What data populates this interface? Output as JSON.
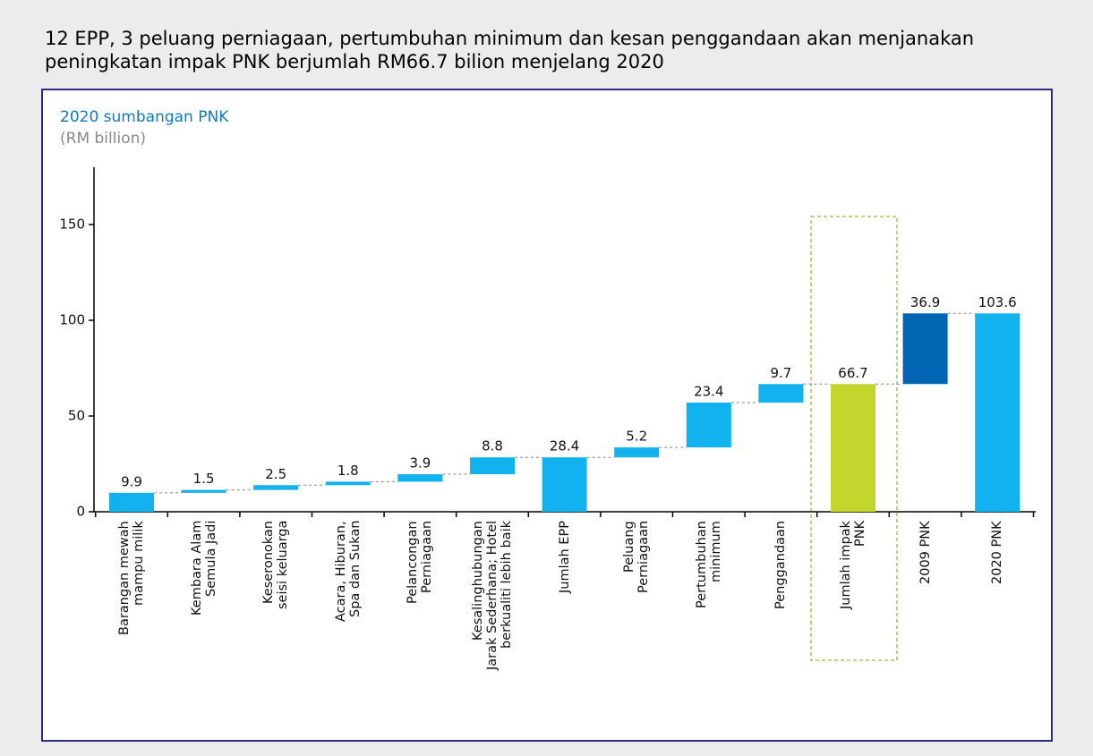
{
  "chart_data": {
    "type": "waterfall",
    "title": "12 EPP, 3 peluang perniagaan, pertumbuhan minimum dan kesan penggandaan akan menjanakan peningkatan impak PNK berjumlah RM66.7 bilion menjelang 2020",
    "y_axis_title": "2020 sumbangan PNK",
    "y_axis_unit": "(RM billion)",
    "categories": [
      "Barangan mewah\nmampu milik",
      "Kembara Alam\nSemula Jadi",
      "Keseronokan\nseisi keluarga",
      "Acara, Hiburan,\nSpa dan Sukan",
      "Pelancongan\nPerniagaan",
      "Kesalinghubungan\nJarak Sederhana; Hotel\nberkualiti lebih baik",
      "Jumlah EPP",
      "Peluang\nPerniagaan",
      "Pertumbuhan\nminimum",
      "Penggandaan",
      "Jumlah impak\nPNK",
      "2009 PNK",
      "2020 PNK"
    ],
    "values": [
      9.9,
      1.5,
      2.5,
      1.8,
      3.9,
      8.8,
      28.4,
      5.2,
      23.4,
      9.7,
      66.7,
      36.9,
      103.6
    ],
    "colors": [
      "#12b2ee",
      "#12b2ee",
      "#12b2ee",
      "#12b2ee",
      "#12b2ee",
      "#12b2ee",
      "#12b2ee",
      "#12b2ee",
      "#12b2ee",
      "#12b2ee",
      "#c3d62e",
      "#0066b3",
      "#12b2ee"
    ],
    "ylim": [
      0,
      180
    ],
    "yticks": [
      0,
      50,
      100,
      150
    ]
  }
}
